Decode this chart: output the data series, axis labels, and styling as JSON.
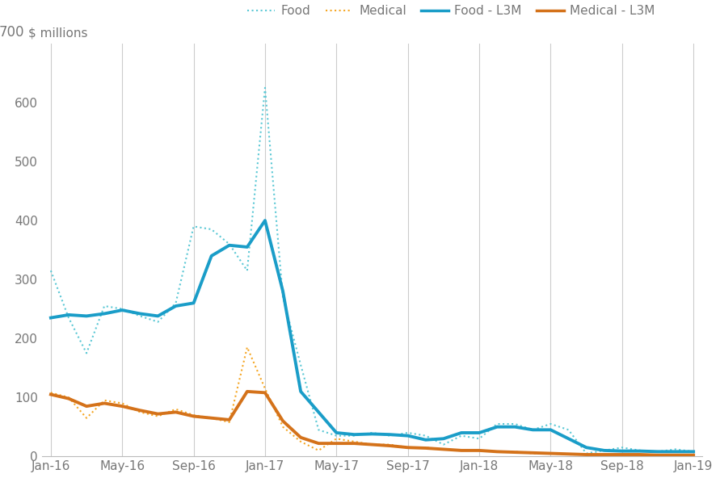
{
  "background_color": "#ffffff",
  "grid_color": "#cccccc",
  "food_color": "#5bc8d5",
  "medical_color": "#f5a623",
  "food_l3m_color": "#1a9dc8",
  "medical_l3m_color": "#d4721a",
  "ylim": [
    0,
    700
  ],
  "yticks": [
    0,
    100,
    200,
    300,
    400,
    500,
    600,
    700
  ],
  "xtick_labels": [
    "Jan-16",
    "May-16",
    "Sep-16",
    "Jan-17",
    "May-17",
    "Sep-17",
    "Jan-18",
    "May-18",
    "Sep-18",
    "Jan-19"
  ],
  "xtick_positions": [
    0,
    4,
    8,
    12,
    16,
    20,
    24,
    28,
    32,
    36
  ],
  "legend_labels": [
    "Food",
    "Medical",
    "Food - L3M",
    "Medical - L3M"
  ],
  "food_raw": [
    315,
    235,
    175,
    255,
    250,
    238,
    228,
    260,
    390,
    385,
    360,
    315,
    625,
    270,
    155,
    45,
    35,
    35,
    40,
    35,
    40,
    35,
    20,
    35,
    30,
    55,
    55,
    45,
    55,
    45,
    5,
    10,
    15,
    10,
    8,
    12,
    8
  ],
  "medical_raw": [
    108,
    100,
    65,
    95,
    90,
    75,
    68,
    80,
    70,
    65,
    58,
    185,
    115,
    50,
    25,
    10,
    30,
    25,
    20,
    20,
    15,
    15,
    12,
    10,
    10,
    8,
    8,
    5,
    5,
    3,
    3,
    3,
    3,
    3,
    2,
    2,
    2
  ],
  "food_l3m": [
    235,
    240,
    238,
    242,
    248,
    242,
    238,
    255,
    260,
    340,
    358,
    355,
    400,
    280,
    110,
    75,
    40,
    37,
    38,
    37,
    35,
    28,
    30,
    40,
    40,
    50,
    50,
    45,
    45,
    30,
    15,
    10,
    9,
    9,
    8,
    8,
    8
  ],
  "medical_l3m": [
    105,
    98,
    85,
    90,
    85,
    78,
    72,
    75,
    68,
    65,
    62,
    110,
    108,
    60,
    32,
    22,
    22,
    22,
    20,
    18,
    15,
    14,
    12,
    10,
    10,
    8,
    7,
    6,
    5,
    4,
    3,
    3,
    3,
    3,
    2,
    2,
    2
  ]
}
